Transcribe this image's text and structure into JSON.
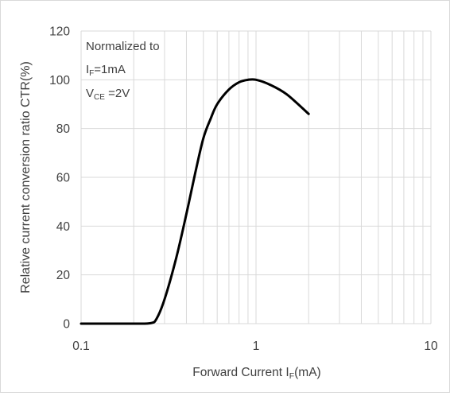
{
  "chart_data": {
    "type": "line",
    "title": "",
    "xlabel": {
      "main": "Forward Current I",
      "sub": "F",
      "unit": "(mA)"
    },
    "ylabel": "Relative current conversion ratio CTR(%)",
    "x_scale": "log",
    "xlim": [
      0.1,
      10
    ],
    "ylim": [
      0,
      120
    ],
    "x_ticks": [
      "0.1",
      "1",
      "10"
    ],
    "y_ticks": [
      "0",
      "20",
      "40",
      "60",
      "80",
      "100",
      "120"
    ],
    "grid": true,
    "annotation": [
      {
        "main": "Normalized to",
        "sub": "",
        "rest": ""
      },
      {
        "main": "I",
        "sub": "F",
        "rest": "=1mA"
      },
      {
        "main": "V",
        "sub": "CE",
        "rest": " =2V"
      }
    ],
    "series": [
      {
        "x": [
          0.1,
          0.15,
          0.2,
          0.25,
          0.27,
          0.3,
          0.35,
          0.4,
          0.45,
          0.5,
          0.55,
          0.6,
          0.7,
          0.8,
          0.9,
          1.0,
          1.2,
          1.5,
          2.0
        ],
        "y": [
          0,
          0,
          0,
          0.2,
          2,
          10,
          27,
          45,
          62,
          76,
          84,
          90,
          96,
          99,
          100,
          100,
          98,
          94,
          86
        ]
      }
    ],
    "colors": {
      "line": "#000000",
      "grid": "#d9d9d9",
      "text": "#404040"
    }
  }
}
